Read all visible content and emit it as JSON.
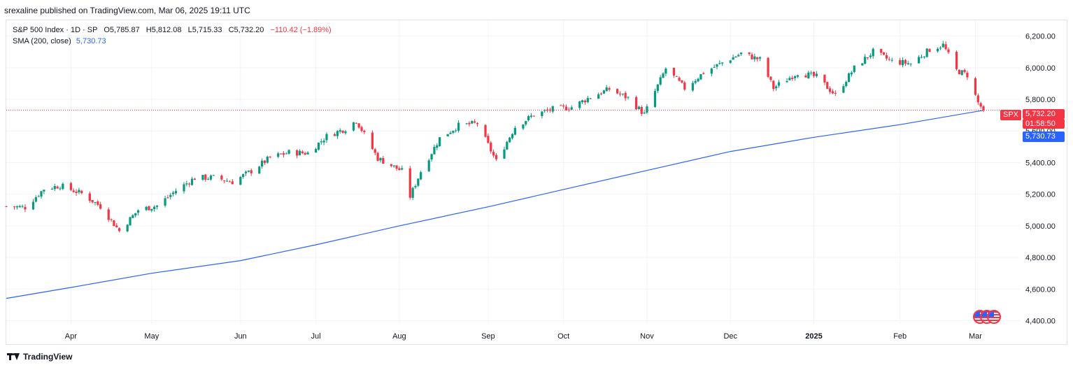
{
  "header": {
    "text": "srexaline published on TradingView.com, Mar 06, 2025 19:11 UTC"
  },
  "legend": {
    "symbol": "S&P 500 Index · 1D · SP",
    "open": "O5,785.87",
    "high": "H5,812.08",
    "low": "L5,715.33",
    "close": "C5,732.20",
    "change": "−110.42 (−1.89%)",
    "sma_label": "SMA (200, close)",
    "sma_value": "5,730.73"
  },
  "price_tags": {
    "symbol": "SPX",
    "last_price": "5,732.20",
    "countdown": "01:58:50",
    "sma": "5,730.73"
  },
  "footer": {
    "brand": "TradingView"
  },
  "colors": {
    "up": "#089981",
    "down": "#f23645",
    "sma": "#2962ff",
    "grid": "#f0f3fa"
  },
  "icons": [
    "tradingview-logo-icon",
    "us-flag-icon"
  ],
  "chart_data": {
    "type": "candlestick",
    "x_start": "2024-03-08",
    "x_end": "2025-03-06",
    "ylim": [
      4380,
      6300
    ],
    "yticks": [
      "6,200.00",
      "6,000.00",
      "5,800.00",
      "5,600.00",
      "5,400.00",
      "5,200.00",
      "5,000.00",
      "4,800.00",
      "4,600.00",
      "4,400.00"
    ],
    "ytick_values": [
      6200,
      6000,
      5800,
      5600,
      5400,
      5200,
      5000,
      4800,
      4600,
      4400
    ],
    "xticks": [
      {
        "label": "Apr",
        "date": "2024-04-01",
        "bold": false
      },
      {
        "label": "May",
        "date": "2024-05-01",
        "bold": false
      },
      {
        "label": "Jun",
        "date": "2024-06-03",
        "bold": false
      },
      {
        "label": "Jul",
        "date": "2024-07-01",
        "bold": false
      },
      {
        "label": "Aug",
        "date": "2024-08-01",
        "bold": false
      },
      {
        "label": "Sep",
        "date": "2024-09-03",
        "bold": false
      },
      {
        "label": "Oct",
        "date": "2024-10-01",
        "bold": false
      },
      {
        "label": "Nov",
        "date": "2024-11-01",
        "bold": false
      },
      {
        "label": "Dec",
        "date": "2024-12-02",
        "bold": false
      },
      {
        "label": "2025",
        "date": "2025-01-02",
        "bold": true
      },
      {
        "label": "Feb",
        "date": "2025-02-03",
        "bold": false
      },
      {
        "label": "Mar",
        "date": "2025-03-03",
        "bold": false
      }
    ],
    "close_path": [
      [
        "2024-03-08",
        5123
      ],
      [
        "2024-03-15",
        5117
      ],
      [
        "2024-03-22",
        5234
      ],
      [
        "2024-03-28",
        5254
      ],
      [
        "2024-04-05",
        5204
      ],
      [
        "2024-04-12",
        5123
      ],
      [
        "2024-04-19",
        4967
      ],
      [
        "2024-04-26",
        5100
      ],
      [
        "2024-05-03",
        5127
      ],
      [
        "2024-05-10",
        5222
      ],
      [
        "2024-05-17",
        5303
      ],
      [
        "2024-05-24",
        5305
      ],
      [
        "2024-05-31",
        5278
      ],
      [
        "2024-06-07",
        5347
      ],
      [
        "2024-06-14",
        5431
      ],
      [
        "2024-06-21",
        5464
      ],
      [
        "2024-06-28",
        5460
      ],
      [
        "2024-07-05",
        5567
      ],
      [
        "2024-07-12",
        5615
      ],
      [
        "2024-07-16",
        5667
      ],
      [
        "2024-07-24",
        5427
      ],
      [
        "2024-08-02",
        5346
      ],
      [
        "2024-08-05",
        5186
      ],
      [
        "2024-08-09",
        5344
      ],
      [
        "2024-08-16",
        5554
      ],
      [
        "2024-08-23",
        5634
      ],
      [
        "2024-08-30",
        5648
      ],
      [
        "2024-09-06",
        5408
      ],
      [
        "2024-09-13",
        5626
      ],
      [
        "2024-09-20",
        5702
      ],
      [
        "2024-09-27",
        5738
      ],
      [
        "2024-10-04",
        5751
      ],
      [
        "2024-10-11",
        5815
      ],
      [
        "2024-10-18",
        5864
      ],
      [
        "2024-10-25",
        5808
      ],
      [
        "2024-10-31",
        5705
      ],
      [
        "2024-11-08",
        5995
      ],
      [
        "2024-11-15",
        5870
      ],
      [
        "2024-11-22",
        5969
      ],
      [
        "2024-11-29",
        6032
      ],
      [
        "2024-12-06",
        6090
      ],
      [
        "2024-12-13",
        6051
      ],
      [
        "2024-12-18",
        5872
      ],
      [
        "2024-12-27",
        5970
      ],
      [
        "2025-01-03",
        5942
      ],
      [
        "2025-01-10",
        5827
      ],
      [
        "2025-01-17",
        5997
      ],
      [
        "2025-01-24",
        6101
      ],
      [
        "2025-01-31",
        6040
      ],
      [
        "2025-02-07",
        6026
      ],
      [
        "2025-02-14",
        6115
      ],
      [
        "2025-02-19",
        6144
      ],
      [
        "2025-02-24",
        5983
      ],
      [
        "2025-02-28",
        5954
      ],
      [
        "2025-03-04",
        5778
      ],
      [
        "2025-03-06",
        5732
      ]
    ],
    "sma_path": [
      [
        "2024-03-08",
        4541
      ],
      [
        "2024-04-01",
        4610
      ],
      [
        "2024-05-01",
        4700
      ],
      [
        "2024-06-03",
        4780
      ],
      [
        "2024-07-01",
        4880
      ],
      [
        "2024-08-01",
        5000
      ],
      [
        "2024-09-03",
        5120
      ],
      [
        "2024-10-01",
        5230
      ],
      [
        "2024-11-01",
        5350
      ],
      [
        "2024-12-02",
        5470
      ],
      [
        "2025-01-02",
        5560
      ],
      [
        "2025-02-03",
        5640
      ],
      [
        "2025-03-06",
        5730.73
      ]
    ],
    "last_price": 5732.2
  }
}
